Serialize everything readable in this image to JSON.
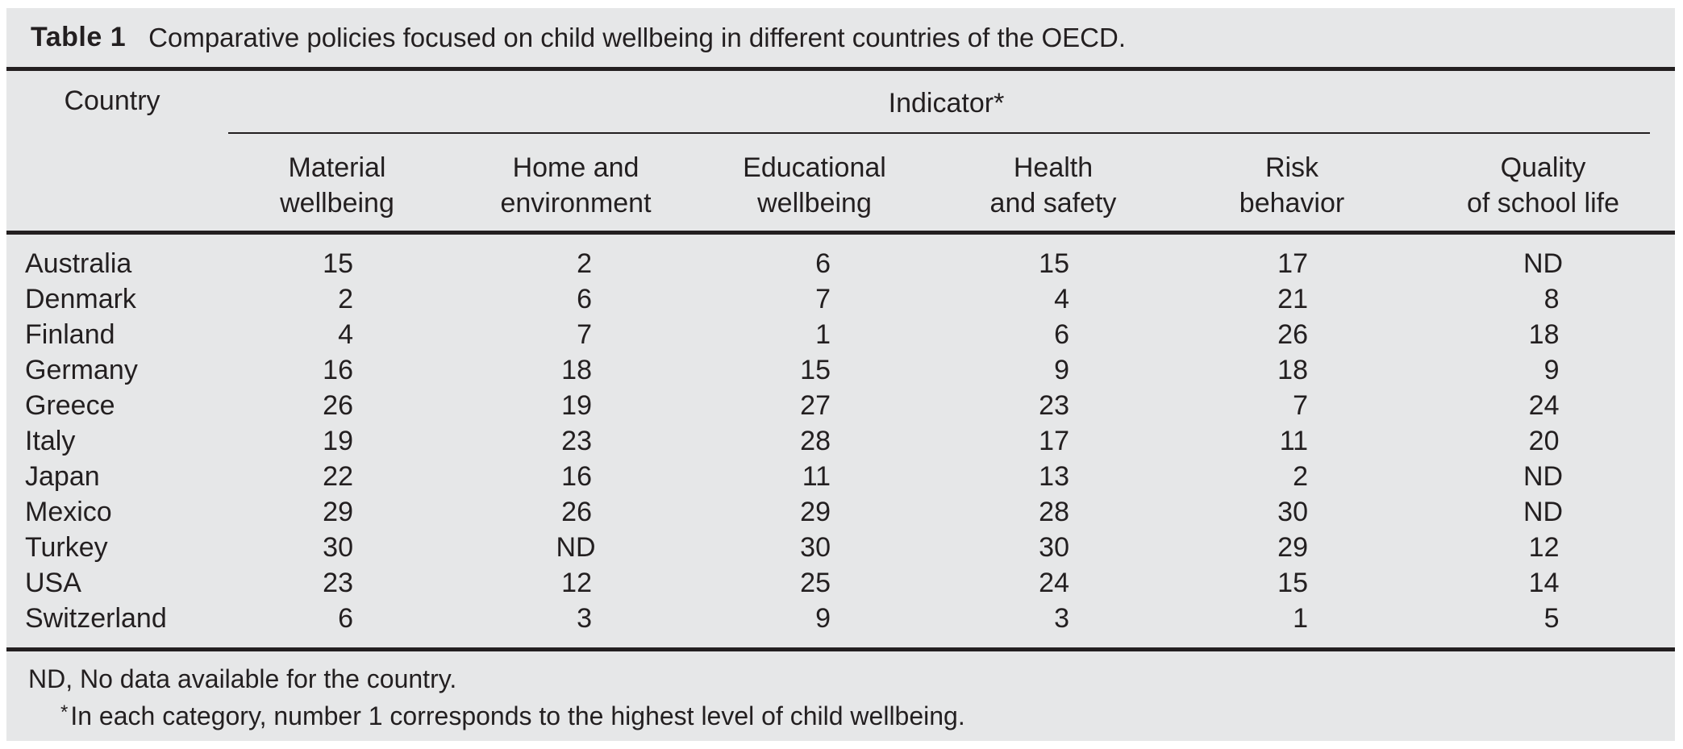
{
  "colors": {
    "panel_bg": "#e6e7e8",
    "ink": "#231f20"
  },
  "table": {
    "title_label": "Table 1",
    "title_text": "Comparative policies focused on child wellbeing in different countries of the OECD.",
    "country_header": "Country",
    "indicator_header": "Indicator*",
    "columns": [
      {
        "line1": "Material",
        "line2": "wellbeing"
      },
      {
        "line1": "Home and",
        "line2": "environment"
      },
      {
        "line1": "Educational",
        "line2": "wellbeing"
      },
      {
        "line1": "Health",
        "line2": "and safety"
      },
      {
        "line1": "Risk",
        "line2": "behavior"
      },
      {
        "line1": "Quality",
        "line2": "of school life"
      }
    ],
    "rows": [
      {
        "country": "Australia",
        "values": [
          "15",
          "2",
          "6",
          "15",
          "17",
          "ND"
        ]
      },
      {
        "country": "Denmark",
        "values": [
          "2",
          "6",
          "7",
          "4",
          "21",
          "8"
        ]
      },
      {
        "country": "Finland",
        "values": [
          "4",
          "7",
          "1",
          "6",
          "26",
          "18"
        ]
      },
      {
        "country": "Germany",
        "values": [
          "16",
          "18",
          "15",
          "9",
          "18",
          "9"
        ]
      },
      {
        "country": "Greece",
        "values": [
          "26",
          "19",
          "27",
          "23",
          "7",
          "24"
        ]
      },
      {
        "country": "Italy",
        "values": [
          "19",
          "23",
          "28",
          "17",
          "11",
          "20"
        ]
      },
      {
        "country": "Japan",
        "values": [
          "22",
          "16",
          "11",
          "13",
          "2",
          "ND"
        ]
      },
      {
        "country": "Mexico",
        "values": [
          "29",
          "26",
          "29",
          "28",
          "30",
          "ND"
        ]
      },
      {
        "country": "Turkey",
        "values": [
          "30",
          "ND",
          "30",
          "30",
          "29",
          "12"
        ]
      },
      {
        "country": "USA",
        "values": [
          "23",
          "12",
          "25",
          "24",
          "15",
          "14"
        ]
      },
      {
        "country": "Switzerland",
        "values": [
          "6",
          "3",
          "9",
          "3",
          "1",
          "5"
        ]
      }
    ],
    "footnote_nd": "ND, No data available for the country.",
    "footnote_star_marker": "*",
    "footnote_star_text": "In each category, number 1 corresponds to the highest level of child wellbeing."
  },
  "chart_data": {
    "type": "table",
    "title": "Table 1 Comparative policies focused on child wellbeing in different countries of the OECD.",
    "columns": [
      "Country",
      "Material wellbeing",
      "Home and environment",
      "Educational wellbeing",
      "Health and safety",
      "Risk behavior",
      "Quality of school life"
    ],
    "rows": [
      [
        "Australia",
        15,
        2,
        6,
        15,
        17,
        "ND"
      ],
      [
        "Denmark",
        2,
        6,
        7,
        4,
        21,
        8
      ],
      [
        "Finland",
        4,
        7,
        1,
        6,
        26,
        18
      ],
      [
        "Germany",
        16,
        18,
        15,
        9,
        18,
        9
      ],
      [
        "Greece",
        26,
        19,
        27,
        23,
        7,
        24
      ],
      [
        "Italy",
        19,
        23,
        28,
        17,
        11,
        20
      ],
      [
        "Japan",
        22,
        16,
        11,
        13,
        2,
        "ND"
      ],
      [
        "Mexico",
        29,
        26,
        29,
        28,
        30,
        "ND"
      ],
      [
        "Turkey",
        30,
        "ND",
        30,
        30,
        29,
        12
      ],
      [
        "USA",
        23,
        12,
        25,
        24,
        15,
        14
      ],
      [
        "Switzerland",
        6,
        3,
        9,
        3,
        1,
        5
      ]
    ],
    "notes": [
      "ND, No data available for the country.",
      "*In each category, number 1 corresponds to the highest level of child wellbeing."
    ]
  }
}
